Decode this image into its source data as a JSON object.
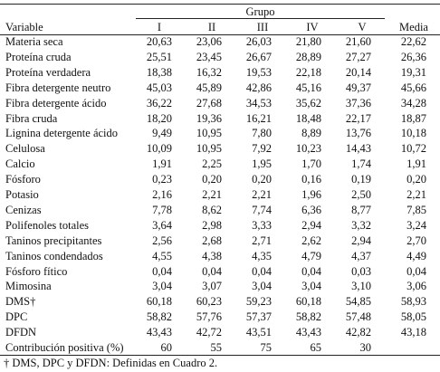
{
  "table": {
    "header": {
      "variable": "Variable",
      "group": "Grupo",
      "mean": "Media",
      "groups": [
        "I",
        "II",
        "III",
        "IV",
        "V"
      ]
    },
    "rows": [
      [
        "Materia seca",
        "20,63",
        "23,06",
        "26,03",
        "21,80",
        "21,60",
        "22,62"
      ],
      [
        "Proteína cruda",
        "25,51",
        "23,45",
        "26,67",
        "28,89",
        "27,27",
        "26,36"
      ],
      [
        "Proteína verdadera",
        "18,38",
        "16,32",
        "19,53",
        "22,18",
        "20,14",
        "19,31"
      ],
      [
        "Fibra detergente neutro",
        "45,03",
        "45,89",
        "42,86",
        "45,16",
        "49,37",
        "45,66"
      ],
      [
        "Fibra detergente ácido",
        "36,22",
        "27,68",
        "34,53",
        "35,62",
        "37,36",
        "34,28"
      ],
      [
        "Fibra cruda",
        "18,20",
        "19,36",
        "16,21",
        "18,48",
        "22,17",
        "18,87"
      ],
      [
        "Lignina detergente ácido",
        "9,49",
        "10,95",
        "7,80",
        "8,89",
        "13,76",
        "10,18"
      ],
      [
        "Celulosa",
        "10,09",
        "10,95",
        "7,92",
        "10,23",
        "14,43",
        "10,72"
      ],
      [
        "Calcio",
        "1,91",
        "2,25",
        "1,95",
        "1,70",
        "1,74",
        "1,91"
      ],
      [
        "Fósforo",
        "0,23",
        "0,20",
        "0,20",
        "0,16",
        "0,19",
        "0,20"
      ],
      [
        "Potasio",
        "2,16",
        "2,21",
        "2,21",
        "1,96",
        "2,50",
        "2,21"
      ],
      [
        "Cenizas",
        "7,78",
        "8,62",
        "7,74",
        "6,36",
        "8,77",
        "7,85"
      ],
      [
        "Polifenoles totales",
        "3,64",
        "2,98",
        "3,33",
        "2,94",
        "3,32",
        "3,24"
      ],
      [
        "Taninos precipitantes",
        "2,56",
        "2,68",
        "2,71",
        "2,62",
        "2,94",
        "2,70"
      ],
      [
        "Taninos condendados",
        "4,55",
        "4,38",
        "4,35",
        "4,79",
        "4,37",
        "4,49"
      ],
      [
        "Fósforo fítico",
        "0,04",
        "0,04",
        "0,04",
        "0,04",
        "0,03",
        "0,04"
      ],
      [
        "Mimosina",
        "3,04",
        "3,07",
        "3,04",
        "3,04",
        "3,10",
        "3,06"
      ],
      [
        "DMS†",
        "60,18",
        "60,23",
        "59,23",
        "60,18",
        "54,85",
        "58,93"
      ],
      [
        "DPC",
        "58,82",
        "57,76",
        "57,37",
        "58,82",
        "57,48",
        "58,05"
      ],
      [
        "DFDN",
        "43,43",
        "42,72",
        "43,51",
        "43,43",
        "42,82",
        "43,18"
      ],
      [
        "Contribución positiva (%)",
        "60",
        "55",
        "75",
        "65",
        "30",
        ""
      ]
    ],
    "footnote": "† DMS, DPC y DFDN: Definidas en Cuadro 2."
  }
}
